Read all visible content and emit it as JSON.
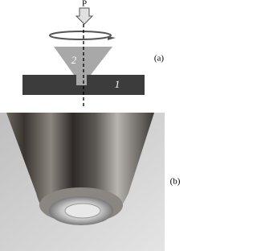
{
  "figure": {
    "panel_a": {
      "label": "(a)",
      "force_label": "P",
      "part_labels": [
        "2",
        "1"
      ]
    },
    "panel_b": {
      "label": "(b)"
    }
  }
}
